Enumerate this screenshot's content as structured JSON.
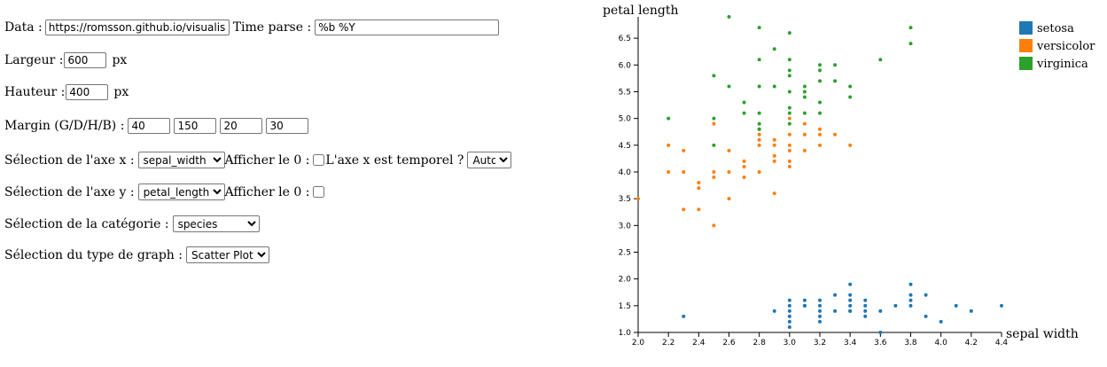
{
  "form": {
    "data_label": "Data :",
    "data_value": "https://romsson.github.io/visualisation",
    "time_parse_label": "Time parse :",
    "time_parse_value": "%b %Y",
    "largeur_label": "Largeur :",
    "largeur_value": "600",
    "largeur_unit": "px",
    "hauteur_label": "Hauteur :",
    "hauteur_value": "400",
    "hauteur_unit": "px",
    "margin_label": "Margin (G/D/H/B) :",
    "margin_values": [
      "40",
      "150",
      "20",
      "30"
    ],
    "axe_x_label": "Sélection de l'axe x :",
    "axe_x_value": "sepal_width",
    "afficher_zero_x_label": "Afficher le 0 :",
    "temporel_label": "L'axe x est temporel ?",
    "temporel_value": "Auto",
    "axe_y_label": "Sélection de l'axe y :",
    "axe_y_value": "petal_length",
    "afficher_zero_y_label": "Afficher le 0 :",
    "categorie_label": "Sélection de la catégorie :",
    "categorie_value": "species",
    "type_label": "Sélection du type de graph :",
    "type_value": "Scatter Plot"
  },
  "chart_data": {
    "type": "scatter",
    "xlabel": "sepal width",
    "ylabel": "petal length",
    "xlim": [
      2.0,
      4.4
    ],
    "ylim": [
      1.0,
      6.9
    ],
    "x_ticks": [
      "2.0",
      "2.2",
      "2.4",
      "2.6",
      "2.8",
      "3.0",
      "3.2",
      "3.4",
      "3.6",
      "3.8",
      "4.0",
      "4.2",
      "4.4"
    ],
    "y_ticks": [
      "1.0",
      "1.5",
      "2.0",
      "2.5",
      "3.0",
      "3.5",
      "4.0",
      "4.5",
      "5.0",
      "5.5",
      "6.0",
      "6.5"
    ],
    "legend_position": "top-right",
    "series": [
      {
        "name": "setosa",
        "color": "#1f77b4",
        "points": [
          [
            2.3,
            1.3
          ],
          [
            2.9,
            1.4
          ],
          [
            3.0,
            1.4
          ],
          [
            3.0,
            1.6
          ],
          [
            3.0,
            1.1
          ],
          [
            3.0,
            1.3
          ],
          [
            3.0,
            1.2
          ],
          [
            3.0,
            1.5
          ],
          [
            3.1,
            1.5
          ],
          [
            3.1,
            1.6
          ],
          [
            3.1,
            1.5
          ],
          [
            3.2,
            1.3
          ],
          [
            3.2,
            1.2
          ],
          [
            3.2,
            1.4
          ],
          [
            3.2,
            1.6
          ],
          [
            3.2,
            1.5
          ],
          [
            3.3,
            1.4
          ],
          [
            3.3,
            1.7
          ],
          [
            3.4,
            1.4
          ],
          [
            3.4,
            1.9
          ],
          [
            3.4,
            1.5
          ],
          [
            3.4,
            1.7
          ],
          [
            3.4,
            1.6
          ],
          [
            3.4,
            1.4
          ],
          [
            3.5,
            1.4
          ],
          [
            3.5,
            1.3
          ],
          [
            3.5,
            1.6
          ],
          [
            3.5,
            1.5
          ],
          [
            3.6,
            1.4
          ],
          [
            3.6,
            1.0
          ],
          [
            3.7,
            1.5
          ],
          [
            3.8,
            1.9
          ],
          [
            3.8,
            1.6
          ],
          [
            3.8,
            1.5
          ],
          [
            3.8,
            1.7
          ],
          [
            3.9,
            1.3
          ],
          [
            3.9,
            1.7
          ],
          [
            4.0,
            1.2
          ],
          [
            4.1,
            1.5
          ],
          [
            4.2,
            1.4
          ],
          [
            4.4,
            1.5
          ]
        ]
      },
      {
        "name": "versicolor",
        "color": "#ff7f0e",
        "points": [
          [
            2.0,
            3.5
          ],
          [
            2.2,
            4.0
          ],
          [
            2.2,
            4.5
          ],
          [
            2.3,
            4.4
          ],
          [
            2.3,
            3.3
          ],
          [
            2.3,
            4.0
          ],
          [
            2.4,
            3.7
          ],
          [
            2.4,
            3.3
          ],
          [
            2.4,
            3.8
          ],
          [
            2.5,
            4.0
          ],
          [
            2.5,
            3.0
          ],
          [
            2.5,
            3.9
          ],
          [
            2.5,
            4.9
          ],
          [
            2.6,
            4.4
          ],
          [
            2.6,
            3.5
          ],
          [
            2.6,
            4.0
          ],
          [
            2.7,
            3.9
          ],
          [
            2.7,
            4.1
          ],
          [
            2.7,
            4.2
          ],
          [
            2.8,
            4.5
          ],
          [
            2.8,
            4.6
          ],
          [
            2.8,
            4.0
          ],
          [
            2.8,
            4.7
          ],
          [
            2.8,
            4.8
          ],
          [
            2.9,
            4.6
          ],
          [
            2.9,
            3.6
          ],
          [
            2.9,
            4.3
          ],
          [
            2.9,
            4.2
          ],
          [
            2.9,
            4.5
          ],
          [
            3.0,
            4.2
          ],
          [
            3.0,
            4.5
          ],
          [
            3.0,
            4.4
          ],
          [
            3.0,
            4.1
          ],
          [
            3.0,
            4.7
          ],
          [
            3.0,
            5.0
          ],
          [
            3.1,
            4.9
          ],
          [
            3.1,
            4.7
          ],
          [
            3.1,
            4.4
          ],
          [
            3.2,
            4.7
          ],
          [
            3.2,
            4.5
          ],
          [
            3.2,
            4.8
          ],
          [
            3.3,
            4.7
          ],
          [
            3.4,
            4.5
          ]
        ]
      },
      {
        "name": "virginica",
        "color": "#2ca02c",
        "points": [
          [
            2.2,
            5.0
          ],
          [
            2.5,
            5.8
          ],
          [
            2.5,
            5.0
          ],
          [
            2.5,
            4.5
          ],
          [
            2.6,
            6.9
          ],
          [
            2.6,
            5.6
          ],
          [
            2.7,
            5.1
          ],
          [
            2.7,
            5.3
          ],
          [
            2.8,
            6.7
          ],
          [
            2.8,
            6.1
          ],
          [
            2.8,
            5.6
          ],
          [
            2.8,
            5.1
          ],
          [
            2.8,
            4.9
          ],
          [
            2.8,
            4.8
          ],
          [
            2.9,
            6.3
          ],
          [
            2.9,
            5.6
          ],
          [
            3.0,
            6.6
          ],
          [
            3.0,
            6.1
          ],
          [
            3.0,
            5.8
          ],
          [
            3.0,
            5.9
          ],
          [
            3.0,
            5.5
          ],
          [
            3.0,
            5.2
          ],
          [
            3.0,
            5.1
          ],
          [
            3.0,
            4.9
          ],
          [
            3.1,
            5.6
          ],
          [
            3.1,
            5.4
          ],
          [
            3.1,
            5.1
          ],
          [
            3.1,
            5.5
          ],
          [
            3.2,
            5.9
          ],
          [
            3.2,
            6.0
          ],
          [
            3.2,
            5.7
          ],
          [
            3.2,
            5.3
          ],
          [
            3.2,
            5.1
          ],
          [
            3.3,
            6.0
          ],
          [
            3.3,
            5.7
          ],
          [
            3.4,
            5.6
          ],
          [
            3.4,
            5.4
          ],
          [
            3.6,
            6.1
          ],
          [
            3.8,
            6.7
          ],
          [
            3.8,
            6.4
          ]
        ]
      }
    ]
  }
}
